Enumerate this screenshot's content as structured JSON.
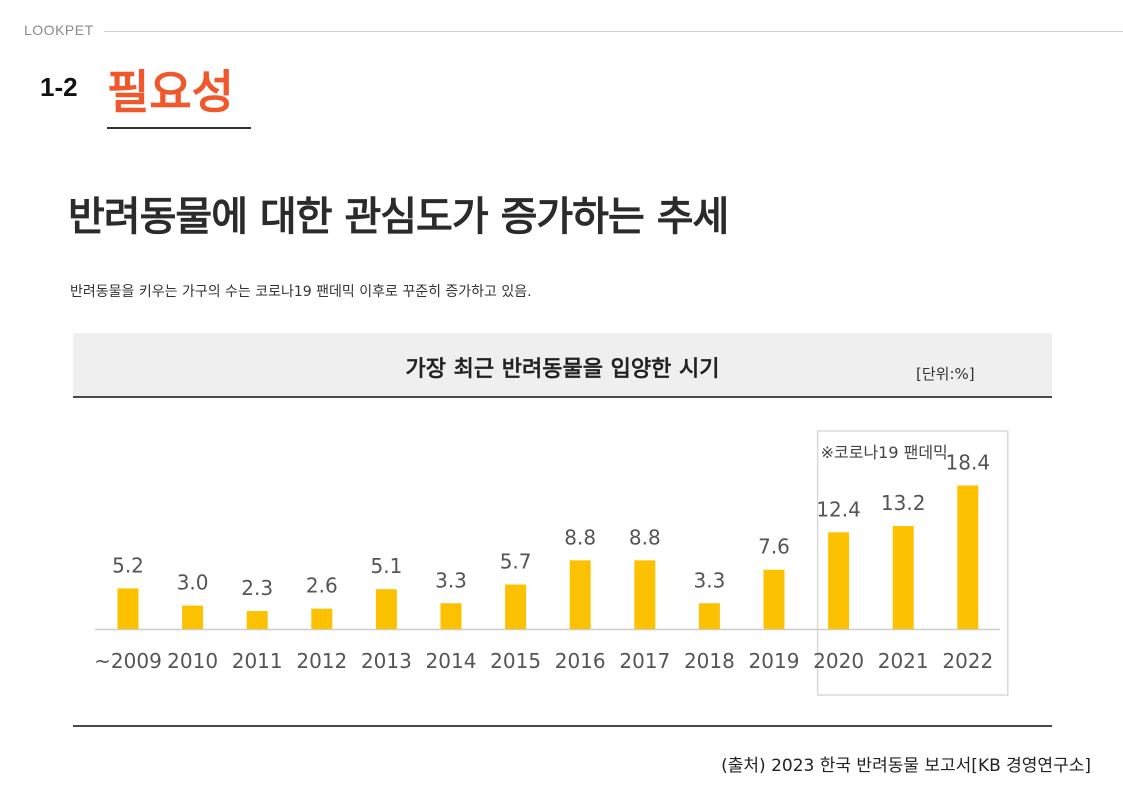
{
  "brand": "LOOKPET",
  "section": {
    "number": "1-2",
    "title": "필요성"
  },
  "headline": "반려동물에 대한 관심도가 증가하는 추세",
  "subtext": "반려동물을 키우는 가구의 수는 코로나19 팬데믹 이후로 꾸준히 증가하고 있음.",
  "chart_header": {
    "title": "가장 최근 반려동물을 입양한 시기",
    "unit": "[단위:%]"
  },
  "source": "(출처) 2023 한국 반려동물 보고서[KB 경영연구소]",
  "colors": {
    "accent": "#f0572a",
    "bar": "#fcc100",
    "axis": "#cccccc"
  },
  "chart_data": {
    "type": "bar",
    "categories": [
      "~2009",
      "2010",
      "2011",
      "2012",
      "2013",
      "2014",
      "2015",
      "2016",
      "2017",
      "2018",
      "2019",
      "2020",
      "2021",
      "2022"
    ],
    "values": [
      5.2,
      3.0,
      2.3,
      2.6,
      5.1,
      3.3,
      5.7,
      8.8,
      8.8,
      3.3,
      7.6,
      12.4,
      13.2,
      18.4
    ],
    "value_labels": [
      "5.2",
      "3.0",
      "2.3",
      "2.6",
      "5.1",
      "3.3",
      "5.7",
      "8.8",
      "8.8",
      "3.3",
      "7.6",
      "12.4",
      "13.2",
      "18.4"
    ],
    "title": "가장 최근 반려동물을 입양한 시기",
    "xlabel": "",
    "ylabel": "",
    "unit": "[단위:%]",
    "highlight": {
      "label": "※코로나19 팬데믹",
      "categories": [
        "2020",
        "2021",
        "2022"
      ]
    },
    "grid": false,
    "legend": "none"
  }
}
